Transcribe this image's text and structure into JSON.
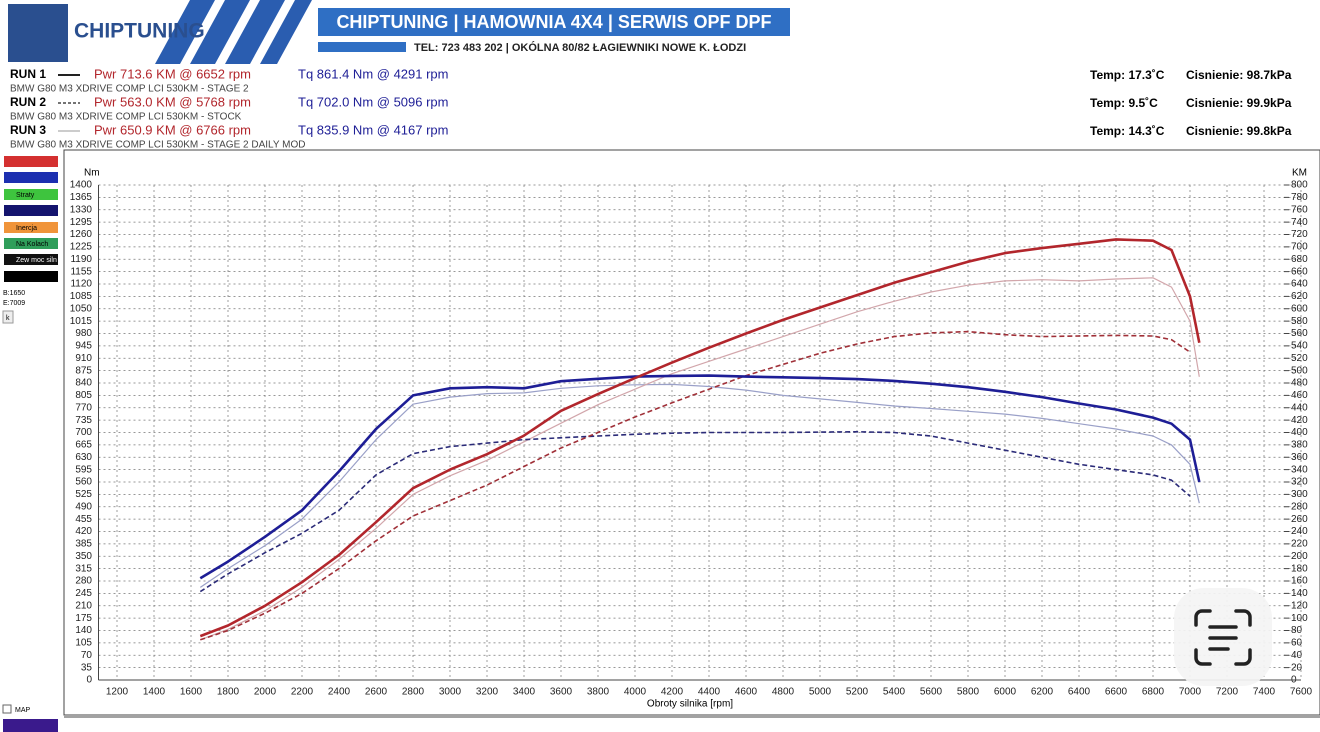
{
  "header": {
    "logo": "CHIPTUNING",
    "banner": "CHIPTUNING | HAMOWNIA 4X4 | SERWIS OPF DPF",
    "contact": "TEL: 723 483 202  |  OKÓLNA 80/82 ŁAGIEWNIKI NOWE K. ŁODZI"
  },
  "runs": [
    {
      "label": "RUN 1",
      "pwr": "Pwr  713.6 KM @ 6652 rpm",
      "tq": "Tq 861.4 Nm @ 4291 rpm",
      "desc": "BMW G80 M3 XDRIVE COMP LCI 530KM - STAGE 2",
      "temp": "Temp: 17.3˚C",
      "pressure": "Cisnienie: 98.7kPa"
    },
    {
      "label": "RUN 2",
      "pwr": "Pwr  563.0 KM @ 5768 rpm",
      "tq": "Tq 702.0 Nm @ 5096 rpm",
      "desc": "BMW G80 M3 XDRIVE COMP LCI 530KM - STOCK",
      "temp": "Temp: 9.5˚C",
      "pressure": "Cisnienie: 99.9kPa"
    },
    {
      "label": "RUN 3",
      "pwr": "Pwr  650.9 KM @ 6766 rpm",
      "tq": "Tq 835.9 Nm @ 4167 rpm",
      "desc": "BMW G80 M3 XDRIVE COMP LCI 530KM - STAGE 2 DAILY MOD",
      "temp": "Temp: 14.3˚C",
      "pressure": "Cisnienie: 99.8kPa"
    }
  ],
  "side_panel": {
    "items": [
      "Straty",
      "Inercja",
      "Na Kolach",
      "Zew moc siln"
    ],
    "begin": "B:1650",
    "end": "E:7009",
    "button": "k",
    "map": "MAP"
  },
  "chart_data": {
    "type": "line",
    "y_label": "Nm",
    "y2_label": "KM",
    "x_label": "Obroty silnika [rpm]",
    "grid": true,
    "xlim": [
      1100,
      7600
    ],
    "ylim": [
      0,
      1400
    ],
    "y2lim": [
      0,
      800
    ],
    "xticks": [
      1200,
      1400,
      1600,
      1800,
      2000,
      2200,
      2400,
      2600,
      2800,
      3000,
      3200,
      3400,
      3600,
      3800,
      4000,
      4200,
      4400,
      4600,
      4800,
      5000,
      5200,
      5400,
      5600,
      5800,
      6000,
      6200,
      6400,
      6600,
      6800,
      7000,
      7200,
      7400,
      7600
    ],
    "yticks": [
      0,
      35,
      70,
      105,
      140,
      175,
      210,
      245,
      280,
      315,
      350,
      385,
      420,
      455,
      490,
      525,
      560,
      595,
      630,
      665,
      700,
      735,
      770,
      805,
      840,
      875,
      910,
      945,
      980,
      1015,
      1050,
      1085,
      1120,
      1155,
      1190,
      1225,
      1260,
      1295,
      1330,
      1365,
      1400
    ],
    "y2ticks": [
      0,
      20,
      40,
      60,
      80,
      100,
      120,
      140,
      160,
      180,
      200,
      220,
      240,
      260,
      280,
      300,
      320,
      340,
      360,
      380,
      400,
      420,
      440,
      460,
      480,
      500,
      520,
      540,
      560,
      580,
      600,
      620,
      640,
      660,
      680,
      700,
      720,
      740,
      760,
      780,
      800
    ],
    "x": [
      1650,
      1800,
      2000,
      2200,
      2400,
      2600,
      2800,
      3000,
      3200,
      3400,
      3600,
      3800,
      4000,
      4200,
      4400,
      4600,
      4800,
      5000,
      5200,
      5400,
      5600,
      5800,
      6000,
      6200,
      6400,
      6600,
      6800,
      6900,
      7000,
      7050
    ],
    "series": [
      {
        "color": "#9aa0c8",
        "style": "thin",
        "axis": "y",
        "values": [
          262,
          315,
          380,
          455,
          560,
          680,
          780,
          800,
          810,
          812,
          825,
          832,
          835,
          836,
          830,
          820,
          805,
          795,
          785,
          775,
          768,
          760,
          752,
          740,
          725,
          710,
          690,
          665,
          610,
          500
        ]
      },
      {
        "color": "#d2a6ab",
        "style": "thin",
        "axis": "y2",
        "values": [
          65,
          82,
          112,
          150,
          195,
          245,
          300,
          330,
          355,
          385,
          415,
          445,
          470,
          495,
          515,
          535,
          555,
          575,
          595,
          612,
          627,
          638,
          645,
          647,
          645,
          648,
          650,
          635,
          580,
          490
        ]
      },
      {
        "color": "#2b2b78",
        "style": "dashed",
        "axis": "y",
        "values": [
          250,
          300,
          360,
          415,
          480,
          580,
          640,
          660,
          670,
          680,
          685,
          690,
          695,
          698,
          700,
          700,
          700,
          701,
          702,
          700,
          690,
          670,
          650,
          630,
          610,
          595,
          580,
          565,
          520,
          null
        ]
      },
      {
        "color": "#a03038",
        "style": "dashed",
        "axis": "y2",
        "values": [
          65,
          80,
          108,
          140,
          180,
          225,
          265,
          290,
          315,
          345,
          375,
          400,
          425,
          448,
          470,
          492,
          510,
          528,
          543,
          555,
          561,
          563,
          558,
          555,
          556,
          557,
          556,
          550,
          530,
          null
        ]
      },
      {
        "color": "#1e1e96",
        "style": "solid",
        "axis": "y",
        "values": [
          288,
          335,
          405,
          480,
          590,
          710,
          805,
          825,
          828,
          825,
          845,
          852,
          858,
          860,
          861,
          858,
          856,
          854,
          851,
          846,
          838,
          828,
          815,
          800,
          782,
          765,
          742,
          725,
          680,
          560
        ]
      },
      {
        "color": "#b2262c",
        "style": "solid",
        "axis": "y2",
        "values": [
          71,
          88,
          120,
          158,
          202,
          255,
          310,
          340,
          365,
          395,
          435,
          462,
          488,
          513,
          537,
          560,
          582,
          602,
          622,
          642,
          659,
          676,
          690,
          698,
          705,
          712,
          710,
          695,
          620,
          545
        ]
      }
    ]
  }
}
